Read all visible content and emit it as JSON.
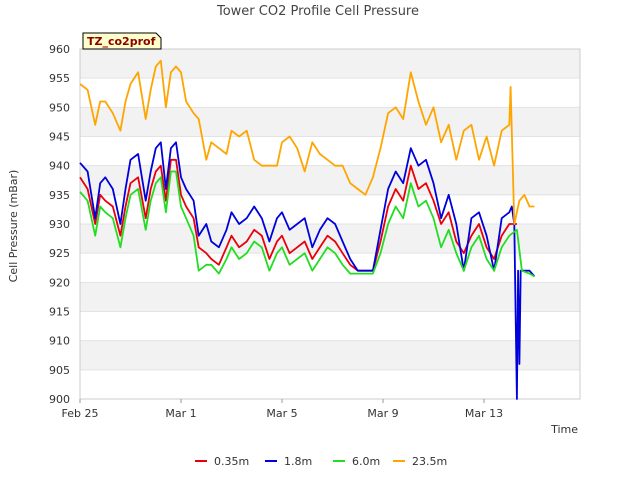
{
  "chart_data": {
    "type": "line",
    "title": "Tower CO2 Profile Cell Pressure",
    "xlabel": "Time",
    "ylabel": "Cell Pressure (mBar)",
    "badge": "TZ_co2prof",
    "ylim": [
      900,
      960
    ],
    "xlim": [
      0,
      19.8
    ],
    "yticks": [
      900,
      905,
      910,
      915,
      920,
      925,
      930,
      935,
      940,
      945,
      950,
      955,
      960
    ],
    "xticks": [
      {
        "label": "Feb 25",
        "x": 0
      },
      {
        "label": "Mar 1",
        "x": 4
      },
      {
        "label": "Mar 5",
        "x": 8
      },
      {
        "label": "Mar 9",
        "x": 12
      },
      {
        "label": "Mar 13",
        "x": 16
      }
    ],
    "x_unit": "days since Feb 25",
    "grid": true,
    "legend": "bottom",
    "series": [
      {
        "name": "0.35m",
        "color": "#e8000b",
        "x": [
          0,
          0.3,
          0.6,
          0.8,
          1.0,
          1.3,
          1.6,
          1.8,
          2.0,
          2.3,
          2.6,
          2.8,
          3.0,
          3.2,
          3.4,
          3.6,
          3.8,
          4.0,
          4.2,
          4.5,
          4.7,
          5.0,
          5.2,
          5.5,
          5.8,
          6.0,
          6.3,
          6.6,
          6.9,
          7.2,
          7.5,
          7.8,
          8.0,
          8.3,
          8.6,
          8.9,
          9.2,
          9.5,
          9.8,
          10.1,
          10.4,
          10.7,
          11.0,
          11.3,
          11.6,
          11.9,
          12.2,
          12.5,
          12.8,
          13.1,
          13.4,
          13.7,
          14.0,
          14.3,
          14.6,
          14.9,
          15.2,
          15.5,
          15.8,
          16.1,
          16.4,
          16.7,
          17.0,
          17.3
        ],
        "y": [
          938,
          936,
          930,
          935,
          934,
          933,
          928,
          933,
          937,
          938,
          931,
          936,
          939,
          940,
          934,
          941,
          941,
          935,
          933,
          931,
          926,
          925,
          924,
          923,
          926,
          928,
          926,
          927,
          929,
          928,
          924,
          927,
          928,
          925,
          926,
          927,
          924,
          926,
          928,
          927,
          925,
          923,
          922,
          922,
          922,
          927,
          933,
          936,
          934,
          940,
          936,
          937,
          934,
          930,
          932,
          927,
          925,
          928,
          930,
          926,
          924,
          928,
          930,
          930
        ]
      },
      {
        "name": "1.8m",
        "color": "#0000dd",
        "x": [
          0,
          0.3,
          0.6,
          0.8,
          1.0,
          1.3,
          1.6,
          1.8,
          2.0,
          2.3,
          2.6,
          2.8,
          3.0,
          3.2,
          3.4,
          3.6,
          3.8,
          4.0,
          4.2,
          4.5,
          4.7,
          5.0,
          5.2,
          5.5,
          5.8,
          6.0,
          6.3,
          6.6,
          6.9,
          7.2,
          7.5,
          7.8,
          8.0,
          8.3,
          8.6,
          8.9,
          9.2,
          9.5,
          9.8,
          10.1,
          10.4,
          10.7,
          11.0,
          11.3,
          11.6,
          11.9,
          12.2,
          12.5,
          12.8,
          13.1,
          13.4,
          13.7,
          14.0,
          14.3,
          14.6,
          14.9,
          15.2,
          15.5,
          15.8,
          16.1,
          16.4,
          16.7,
          17.0,
          17.1,
          17.2,
          17.3,
          17.35,
          17.4,
          17.45,
          17.5,
          17.6,
          17.8,
          18.0
        ],
        "y": [
          940.5,
          939,
          931,
          937,
          938,
          936,
          930,
          936,
          941,
          942,
          934,
          939,
          943,
          944,
          936,
          943,
          944,
          938,
          936,
          934,
          928,
          930,
          927,
          926,
          929,
          932,
          930,
          931,
          933,
          931,
          927,
          931,
          932,
          929,
          930,
          931,
          926,
          929,
          931,
          930,
          927,
          924,
          922,
          922,
          922,
          929,
          936,
          939,
          937,
          943,
          940,
          941,
          937,
          931,
          935,
          930,
          922,
          931,
          932,
          928,
          922,
          931,
          932,
          933,
          930,
          900,
          922,
          906,
          922,
          922,
          922,
          922,
          921
        ]
      },
      {
        "name": "6.0m",
        "color": "#22dd22",
        "x": [
          0,
          0.3,
          0.6,
          0.8,
          1.0,
          1.3,
          1.6,
          1.8,
          2.0,
          2.3,
          2.6,
          2.8,
          3.0,
          3.2,
          3.4,
          3.6,
          3.8,
          4.0,
          4.2,
          4.5,
          4.7,
          5.0,
          5.2,
          5.5,
          5.8,
          6.0,
          6.3,
          6.6,
          6.9,
          7.2,
          7.5,
          7.8,
          8.0,
          8.3,
          8.6,
          8.9,
          9.2,
          9.5,
          9.8,
          10.1,
          10.4,
          10.7,
          11.0,
          11.3,
          11.6,
          11.9,
          12.2,
          12.5,
          12.8,
          13.1,
          13.4,
          13.7,
          14.0,
          14.3,
          14.6,
          14.9,
          15.2,
          15.5,
          15.8,
          16.1,
          16.4,
          16.7,
          17.0,
          17.3,
          17.5,
          17.8,
          18.0
        ],
        "y": [
          935.5,
          934,
          928,
          933,
          932,
          931,
          926,
          931,
          935,
          936,
          929,
          934,
          937,
          938,
          932,
          939,
          939,
          933,
          931,
          928,
          922,
          923,
          923,
          921.5,
          924,
          926,
          924,
          925,
          927,
          926,
          922,
          925,
          926,
          923,
          924,
          925,
          922,
          924,
          926,
          925,
          923,
          921.5,
          921.5,
          921.5,
          921.5,
          925,
          930,
          933,
          931,
          937,
          933,
          934,
          931,
          926,
          929,
          925,
          922,
          926,
          928,
          924,
          922,
          926,
          928,
          929,
          922,
          921.5,
          921
        ]
      },
      {
        "name": "23.5m",
        "color": "#ffa500",
        "x": [
          0,
          0.3,
          0.6,
          0.8,
          1.0,
          1.3,
          1.6,
          1.8,
          2.0,
          2.3,
          2.6,
          2.8,
          3.0,
          3.2,
          3.4,
          3.6,
          3.8,
          4.0,
          4.2,
          4.5,
          4.7,
          5.0,
          5.2,
          5.5,
          5.8,
          6.0,
          6.3,
          6.6,
          6.9,
          7.2,
          7.5,
          7.8,
          8.0,
          8.3,
          8.6,
          8.9,
          9.2,
          9.5,
          9.8,
          10.1,
          10.4,
          10.7,
          11.0,
          11.3,
          11.6,
          11.9,
          12.2,
          12.5,
          12.8,
          13.1,
          13.4,
          13.7,
          14.0,
          14.3,
          14.6,
          14.9,
          15.2,
          15.5,
          15.8,
          16.1,
          16.4,
          16.7,
          17.0,
          17.05,
          17.2,
          17.4,
          17.6,
          17.8,
          18.0
        ],
        "y": [
          954,
          953,
          947,
          951,
          951,
          949,
          946,
          951,
          954,
          956,
          948,
          953,
          957,
          958,
          950,
          956,
          957,
          956,
          951,
          949,
          948,
          941,
          944,
          943,
          942,
          946,
          945,
          946,
          941,
          940,
          940,
          940,
          944,
          945,
          943,
          939,
          944,
          942,
          941,
          940,
          940,
          937,
          936,
          935,
          938,
          943,
          949,
          950,
          948,
          956,
          951,
          947,
          950,
          944,
          947,
          941,
          946,
          947,
          941,
          945,
          940,
          946,
          947,
          953.5,
          930,
          934,
          935,
          933,
          933
        ]
      }
    ]
  }
}
